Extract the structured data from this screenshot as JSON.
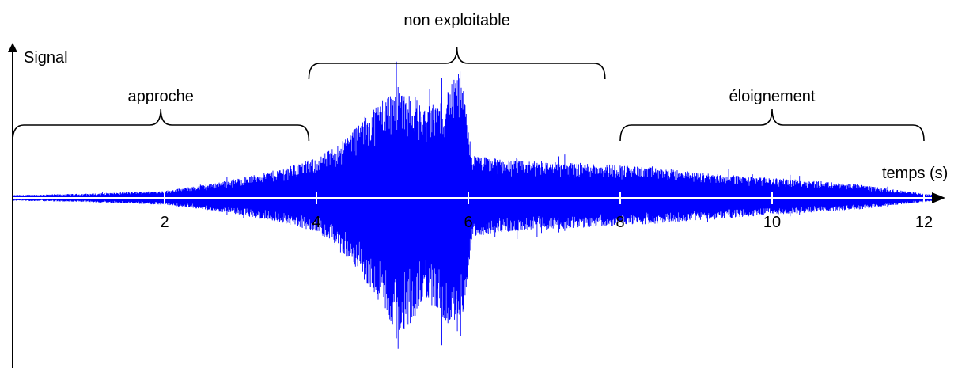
{
  "chart_data": {
    "type": "area",
    "ylabel": "Signal",
    "xlabel": "temps (s)",
    "xlim": [
      0,
      12.2
    ],
    "ylim": [
      -1,
      1
    ],
    "x_ticks": [
      2,
      4,
      6,
      8,
      10,
      12
    ],
    "x_tick_labels": [
      "2",
      "4",
      "6",
      "8",
      "10",
      "12"
    ],
    "signal_color": "#0000ff",
    "axis_color": "#000000",
    "grid": false,
    "envelope": {
      "t": [
        0,
        1,
        2,
        2.5,
        3,
        3.5,
        4,
        4.3,
        4.6,
        4.9,
        5.1,
        5.3,
        5.4,
        5.6,
        5.8,
        5.9,
        6.05,
        6.3,
        6.7,
        7.2,
        7.8,
        8.5,
        9.2,
        10,
        10.6,
        11.2,
        11.6,
        12,
        12.2
      ],
      "pos": [
        0.02,
        0.03,
        0.05,
        0.09,
        0.14,
        0.2,
        0.28,
        0.38,
        0.55,
        0.72,
        0.78,
        0.72,
        0.62,
        0.68,
        0.82,
        0.9,
        0.3,
        0.28,
        0.26,
        0.25,
        0.24,
        0.21,
        0.17,
        0.14,
        0.12,
        0.09,
        0.06,
        0.03,
        0.02
      ],
      "neg": [
        0.02,
        0.03,
        0.05,
        0.08,
        0.12,
        0.17,
        0.24,
        0.35,
        0.55,
        0.82,
        0.95,
        0.85,
        0.7,
        0.8,
        0.93,
        0.98,
        0.28,
        0.25,
        0.23,
        0.22,
        0.2,
        0.18,
        0.15,
        0.12,
        0.1,
        0.08,
        0.05,
        0.03,
        0.02
      ]
    },
    "annotations": [
      {
        "label": "approche",
        "from": 0,
        "to": 3.9,
        "level": "low"
      },
      {
        "label": "non exploitable",
        "from": 3.9,
        "to": 7.8,
        "level": "high"
      },
      {
        "label": "éloignement",
        "from": 8,
        "to": 12,
        "level": "low"
      }
    ]
  }
}
